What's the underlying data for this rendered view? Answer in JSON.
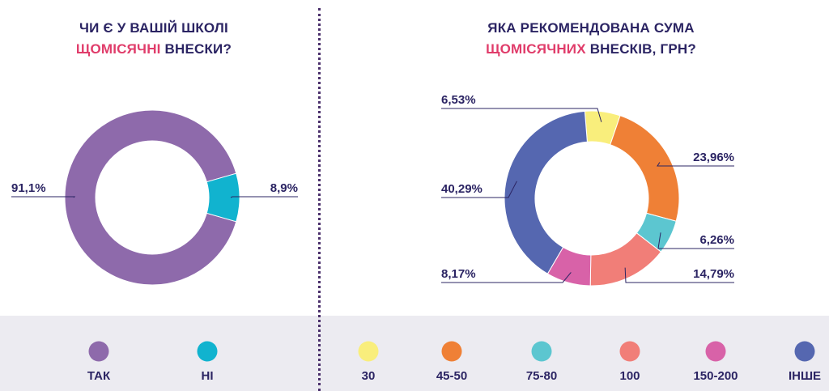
{
  "left": {
    "title_line1": "ЧИ Є У ВАШІЙ ШКОЛІ",
    "title_hl": "ЩОМІСЯЧНІ",
    "title_rest": " ВНЕСКИ?"
  },
  "right": {
    "title_line1": "ЯКА РЕКОМЕНДОВАНА СУМА",
    "title_hl": "ЩОМІСЯЧНИХ",
    "title_rest": " ВНЕСКІВ, ГРН?"
  },
  "chart_data": [
    {
      "type": "pie",
      "donut": true,
      "title": "ЧИ Є У ВАШІЙ ШКОЛІ ЩОМІСЯЧНІ ВНЕСКИ?",
      "categories": [
        "ТАК",
        "НІ"
      ],
      "values": [
        91.1,
        8.9
      ],
      "labels": [
        "91,1%",
        "8,9%"
      ],
      "colors": [
        "#8e6aab",
        "#11b3cf"
      ],
      "legend": "bottom"
    },
    {
      "type": "pie",
      "donut": true,
      "title": "ЯКА РЕКОМЕНДОВАНА СУМА ЩОМІСЯЧНИХ ВНЕСКІВ, ГРН?",
      "categories": [
        "30",
        "45-50",
        "75-80",
        "100",
        "150-200",
        "ІНШЕ"
      ],
      "values": [
        6.53,
        23.96,
        6.26,
        14.79,
        8.17,
        40.29
      ],
      "labels": [
        "6,53%",
        "23,96%",
        "6,26%",
        "14,79%",
        "8,17%",
        "40,29%"
      ],
      "colors": [
        "#f9ee7c",
        "#ef8036",
        "#5cc6d0",
        "#f17e78",
        "#d862a8",
        "#5567b0"
      ],
      "legend": "bottom"
    }
  ]
}
